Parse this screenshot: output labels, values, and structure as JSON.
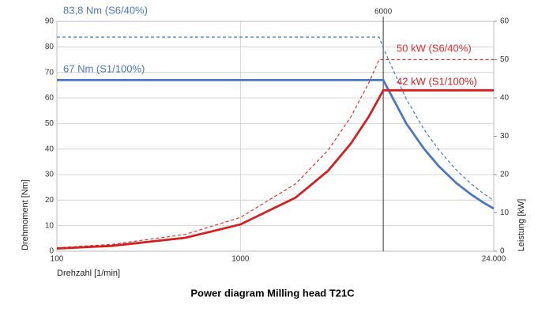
{
  "chart_data": {
    "type": "line",
    "title": "Power diagram Milling head T21C",
    "x_label": "Drehzahl [1/min]",
    "y_label": "Drehmoment [Nm]",
    "y2_label": "Leistung [kW]",
    "log_x": true,
    "grid": true,
    "xlim": [
      100,
      24000
    ],
    "xticks": [
      100,
      1000,
      6000,
      {
        "value": 24000,
        "label": "24.000"
      }
    ],
    "ylim": [
      0,
      90
    ],
    "yticks": [
      0,
      10,
      20,
      30,
      40,
      50,
      60,
      70,
      80,
      90
    ],
    "y2lim": [
      0,
      60
    ],
    "y2ticks": [
      0,
      10,
      20,
      30,
      40,
      50,
      60
    ],
    "x": [
      100,
      200,
      500,
      1000,
      2000,
      3000,
      4000,
      5000,
      5700,
      6000,
      8000,
      10000,
      12000,
      15000,
      18000,
      21000,
      24000
    ],
    "series": [
      {
        "name": "83,8 Nm (S6/40%)",
        "color": "#4a78c0",
        "dashed": true,
        "values": [
          83.8,
          83.8,
          83.8,
          83.8,
          83.8,
          83.8,
          83.8,
          83.8,
          83.8,
          79.6,
          59.7,
          47.7,
          39.8,
          31.8,
          26.5,
          22.7,
          19.9
        ]
      },
      {
        "name": "67 Nm (S1/100%)",
        "color": "#4a78c0",
        "dashed": false,
        "values": [
          67,
          67,
          67,
          67,
          67,
          67,
          67,
          67,
          67,
          67,
          50.1,
          40.1,
          33.4,
          26.7,
          22.3,
          19.1,
          16.7
        ]
      },
      {
        "name": "50 kW (S6/40%)",
        "color": "#e03030",
        "dashed": true,
        "axis": "y2",
        "values": [
          0.9,
          1.8,
          4.4,
          8.8,
          17.6,
          26.3,
          35.1,
          43.9,
          50,
          50,
          50,
          50,
          50,
          50,
          50,
          50,
          50
        ]
      },
      {
        "name": "42 kW (S1/100%)",
        "color": "#d42020",
        "dashed": false,
        "axis": "y2",
        "values": [
          0.7,
          1.4,
          3.5,
          7.0,
          14.0,
          21.0,
          28.1,
          35.1,
          40.0,
          42,
          42,
          42,
          42,
          42,
          42,
          42,
          42
        ]
      }
    ]
  }
}
